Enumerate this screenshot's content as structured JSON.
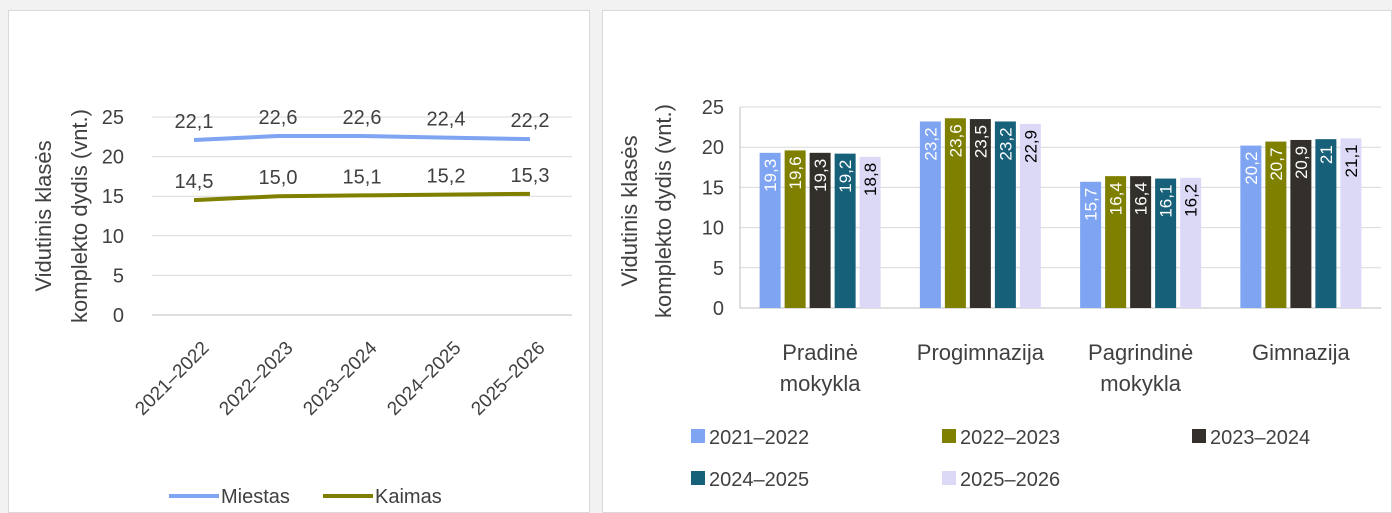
{
  "chart_data": [
    {
      "type": "line",
      "ylabel_line1": "Vidutinis klasės",
      "ylabel_line2": "komplekto dydis (vnt.)",
      "ylim": [
        0,
        25
      ],
      "yticks": [
        "0",
        "5",
        "10",
        "15",
        "20",
        "25"
      ],
      "categories": [
        "2021–2022",
        "2022–2023",
        "2023–2024",
        "2024–2025",
        "2025–2026"
      ],
      "series": [
        {
          "name": "Miestas",
          "color": "#7ea4f2",
          "values": [
            22.1,
            22.6,
            22.6,
            22.4,
            22.2
          ],
          "labels": [
            "22,1",
            "22,6",
            "22,6",
            "22,4",
            "22,2"
          ]
        },
        {
          "name": "Kaimas",
          "color": "#7f7f00",
          "values": [
            14.5,
            15.0,
            15.1,
            15.2,
            15.3
          ],
          "labels": [
            "14,5",
            "15,0",
            "15,1",
            "15,2",
            "15,3"
          ]
        }
      ],
      "legend_position": "bottom",
      "grid": true
    },
    {
      "type": "bar",
      "ylabel_line1": "Vidutinis klasės",
      "ylabel_line2": "komplekto dydis (vnt.)",
      "ylim": [
        0,
        25
      ],
      "yticks": [
        "0",
        "5",
        "10",
        "15",
        "20",
        "25"
      ],
      "categories": [
        [
          "Pradinė",
          "mokykla"
        ],
        [
          "Progimnazija"
        ],
        [
          "Pagrindinė",
          "mokykla"
        ],
        [
          "Gimnazija"
        ]
      ],
      "series": [
        {
          "name": "2021–2022",
          "color": "#7ea4f2",
          "label_color": "#ffffff",
          "values": [
            19.3,
            23.2,
            15.7,
            20.2
          ],
          "labels": [
            "19,3",
            "23,2",
            "15,7",
            "20,2"
          ]
        },
        {
          "name": "2022–2023",
          "color": "#7f7f00",
          "label_color": "#ffffff",
          "values": [
            19.6,
            23.6,
            16.4,
            20.7
          ],
          "labels": [
            "19,6",
            "23,6",
            "16,4",
            "20,7"
          ]
        },
        {
          "name": "2023–2024",
          "color": "#332f2b",
          "label_color": "#ffffff",
          "values": [
            19.3,
            23.5,
            16.4,
            20.9
          ],
          "labels": [
            "19,3",
            "23,5",
            "16,4",
            "20,9"
          ]
        },
        {
          "name": "2024–2025",
          "color": "#17607a",
          "label_color": "#ffffff",
          "values": [
            19.2,
            23.2,
            16.1,
            21
          ],
          "labels": [
            "19,2",
            "23,2",
            "16,1",
            "21"
          ]
        },
        {
          "name": "2025–2026",
          "color": "#dcd9f7",
          "label_color": "#000000",
          "values": [
            18.8,
            22.9,
            16.2,
            21.1
          ],
          "labels": [
            "18,8",
            "22,9",
            "16,2",
            "21,1"
          ]
        }
      ],
      "legend_position": "bottom",
      "grid": true
    }
  ]
}
